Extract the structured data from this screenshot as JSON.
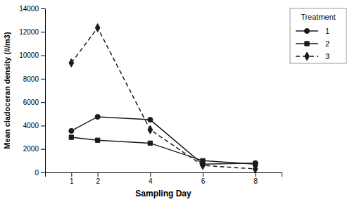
{
  "chart_data": {
    "type": "line",
    "xlabel": "Sampling Day",
    "ylabel": "Mean cladoceran density (#/m3)",
    "legend_title": "Treatment",
    "x": [
      1,
      2,
      4,
      6,
      8
    ],
    "series": [
      {
        "name": "1",
        "color": "#1a1a1a",
        "marker": "circle",
        "line_style": "solid",
        "values": [
          3550,
          4750,
          4500,
          700,
          800
        ]
      },
      {
        "name": "2",
        "color": "#1a1a1a",
        "marker": "square",
        "line_style": "solid",
        "values": [
          3000,
          2750,
          2500,
          1000,
          700
        ]
      },
      {
        "name": "3",
        "color": "#1a1a1a",
        "marker": "diamond",
        "line_style": "dashed",
        "values": [
          9350,
          12350,
          3650,
          600,
          300
        ]
      }
    ],
    "xlim": [
      0,
      9
    ],
    "xticks": [
      1,
      2,
      4,
      6,
      8
    ],
    "ylim": [
      0,
      14000
    ],
    "yticks": [
      0,
      2000,
      4000,
      6000,
      8000,
      10000,
      12000,
      14000
    ],
    "grid": false,
    "legend": "right"
  }
}
